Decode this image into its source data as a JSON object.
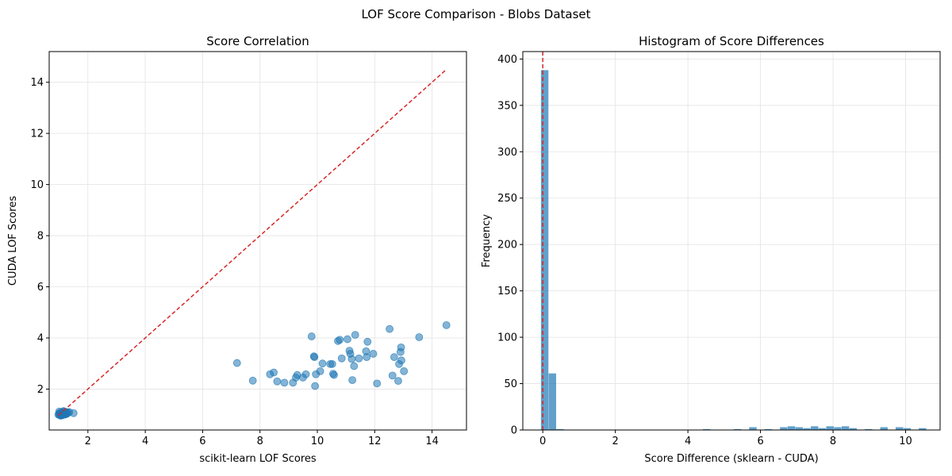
{
  "figure": {
    "suptitle": "LOF Score Comparison - Blobs Dataset"
  },
  "chart_data": [
    {
      "type": "scatter",
      "title": "Score Correlation",
      "xlabel": "scikit-learn LOF Scores",
      "ylabel": "CUDA LOF Scores",
      "xlim": [
        0.65,
        15.2
      ],
      "ylim": [
        0.4,
        15.2
      ],
      "xticks": [
        2,
        4,
        6,
        8,
        10,
        12,
        14
      ],
      "yticks": [
        2,
        4,
        6,
        8,
        10,
        12,
        14
      ],
      "grid": true,
      "color": "#1f77b4",
      "reference_line": {
        "x": [
          0.97,
          14.5
        ],
        "y": [
          0.97,
          14.5
        ],
        "color": "#d62728",
        "style": "dashed"
      },
      "points": [
        [
          7.2,
          3.02
        ],
        [
          7.75,
          2.33
        ],
        [
          8.35,
          2.58
        ],
        [
          8.48,
          2.65
        ],
        [
          8.6,
          2.3
        ],
        [
          8.85,
          2.25
        ],
        [
          9.15,
          2.25
        ],
        [
          9.25,
          2.45
        ],
        [
          9.3,
          2.55
        ],
        [
          9.5,
          2.45
        ],
        [
          9.6,
          2.58
        ],
        [
          9.8,
          4.06
        ],
        [
          9.88,
          3.28
        ],
        [
          9.9,
          3.25
        ],
        [
          9.92,
          2.12
        ],
        [
          9.95,
          2.58
        ],
        [
          10.1,
          2.7
        ],
        [
          10.18,
          3.0
        ],
        [
          10.45,
          2.98
        ],
        [
          10.52,
          2.98
        ],
        [
          10.55,
          2.6
        ],
        [
          10.58,
          2.55
        ],
        [
          10.72,
          3.88
        ],
        [
          10.78,
          3.93
        ],
        [
          10.85,
          3.2
        ],
        [
          11.05,
          3.95
        ],
        [
          11.12,
          3.5
        ],
        [
          11.15,
          3.38
        ],
        [
          11.2,
          3.18
        ],
        [
          11.22,
          2.35
        ],
        [
          11.28,
          2.9
        ],
        [
          11.32,
          4.12
        ],
        [
          11.45,
          3.2
        ],
        [
          11.7,
          3.48
        ],
        [
          11.72,
          3.25
        ],
        [
          11.75,
          3.85
        ],
        [
          11.95,
          3.38
        ],
        [
          12.08,
          2.22
        ],
        [
          12.52,
          4.35
        ],
        [
          12.62,
          2.53
        ],
        [
          12.68,
          3.25
        ],
        [
          12.82,
          2.32
        ],
        [
          12.85,
          2.98
        ],
        [
          12.9,
          3.45
        ],
        [
          12.92,
          3.63
        ],
        [
          12.93,
          3.12
        ],
        [
          13.02,
          2.7
        ],
        [
          13.55,
          4.03
        ],
        [
          14.5,
          4.5
        ],
        [
          0.97,
          1.0
        ],
        [
          1.0,
          1.05
        ],
        [
          1.02,
          0.98
        ],
        [
          1.03,
          1.02
        ],
        [
          1.05,
          1.08
        ],
        [
          1.07,
          1.0
        ],
        [
          1.08,
          0.97
        ],
        [
          1.1,
          1.04
        ],
        [
          1.12,
          1.1
        ],
        [
          1.13,
          0.99
        ],
        [
          1.15,
          1.06
        ],
        [
          1.17,
          1.02
        ],
        [
          1.18,
          1.12
        ],
        [
          1.2,
          1.0
        ],
        [
          1.22,
          1.07
        ],
        [
          1.25,
          1.1
        ],
        [
          1.28,
          1.04
        ],
        [
          1.3,
          1.09
        ],
        [
          1.35,
          1.1
        ],
        [
          1.5,
          1.06
        ],
        [
          1.0,
          1.12
        ],
        [
          1.05,
          0.96
        ],
        [
          1.1,
          0.98
        ],
        [
          1.15,
          1.14
        ],
        [
          1.09,
          1.03
        ],
        [
          1.01,
          1.0
        ],
        [
          1.04,
          1.04
        ],
        [
          1.19,
          1.05
        ],
        [
          1.23,
          1.02
        ],
        [
          1.12,
          1.06
        ]
      ]
    },
    {
      "type": "bar",
      "title": "Histogram of Score Differences",
      "xlabel": "Score Difference (sklearn - CUDA)",
      "ylabel": "Frequency",
      "xlim": [
        -0.55,
        10.95
      ],
      "ylim": [
        0,
        408
      ],
      "xticks": [
        0,
        2,
        4,
        6,
        8,
        10
      ],
      "yticks": [
        0,
        50,
        100,
        150,
        200,
        250,
        300,
        350,
        400
      ],
      "grid": true,
      "color": "#1f77b4",
      "bin_start": -0.05,
      "bin_width": 0.2125,
      "counts": [
        388,
        61,
        1,
        0,
        0,
        0,
        0,
        0,
        0,
        0,
        0,
        0,
        0,
        0,
        0,
        0,
        0,
        0,
        0,
        0,
        0,
        1,
        0,
        0,
        0,
        1,
        0,
        3,
        0,
        1,
        0,
        3,
        4,
        3,
        2,
        4,
        2,
        4,
        3,
        4,
        2,
        0,
        1,
        0,
        3,
        0,
        3,
        2,
        0,
        2
      ],
      "reference_line": {
        "x": 0,
        "color": "#d62728",
        "style": "dashed"
      }
    }
  ]
}
